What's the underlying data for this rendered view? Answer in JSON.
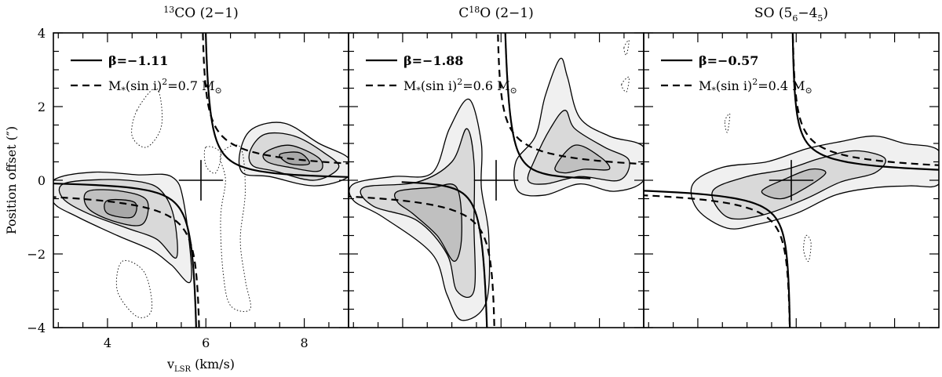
{
  "chart_data": {
    "type": "line",
    "xlabel": "v",
    "xlabel_sub": "LSR",
    "xlabel_unit": "(km/s)",
    "ylabel": "Position offset (″)",
    "xlim": [
      2.9,
      8.9
    ],
    "ylim": [
      -4,
      4
    ],
    "x_ticks": [
      "4",
      "6",
      "8"
    ],
    "y_ticks": [
      "−4",
      "−2",
      "0",
      "2",
      "4"
    ],
    "v_sys": 5.9,
    "panels": [
      {
        "title_sup": "13",
        "title_main": "CO (2−1)",
        "title_sup_first": true,
        "legend_solid": "β=−1.11",
        "legend_dashed_pre": "M",
        "legend_dashed_sub": "*",
        "legend_dashed_mid": "(sin i)",
        "legend_dashed_sup": "2",
        "legend_dashed_post": "=0.7 M",
        "legend_dashed_sun": "⊙",
        "beta": -1.11,
        "solid_A": 0.34,
        "dashed_A": 0.62,
        "contours": [
          {
            "level": 1,
            "points": [
              [
                2.9,
                0.0
              ],
              [
                3.7,
                0.22
              ],
              [
                4.6,
                0.15
              ],
              [
                5.3,
                0.1
              ],
              [
                5.55,
                -0.6
              ],
              [
                5.7,
                -2.7
              ],
              [
                5.3,
                -2.3
              ],
              [
                4.9,
                -1.9
              ],
              [
                4.2,
                -1.5
              ],
              [
                3.4,
                -1.0
              ],
              [
                2.9,
                -0.6
              ]
            ]
          },
          {
            "level": 2,
            "points": [
              [
                3.1,
                -0.1
              ],
              [
                3.9,
                0.02
              ],
              [
                4.7,
                -0.05
              ],
              [
                5.1,
                -0.3
              ],
              [
                5.35,
                -1.0
              ],
              [
                5.4,
                -2.1
              ],
              [
                5.0,
                -1.6
              ],
              [
                4.4,
                -1.3
              ],
              [
                3.6,
                -0.9
              ],
              [
                3.1,
                -0.5
              ]
            ]
          },
          {
            "level": 3,
            "points": [
              [
                3.6,
                -0.3
              ],
              [
                4.3,
                -0.3
              ],
              [
                4.8,
                -0.55
              ],
              [
                4.7,
                -1.2
              ],
              [
                4.1,
                -1.1
              ],
              [
                3.6,
                -0.75
              ]
            ]
          },
          {
            "level": 4,
            "points": [
              [
                4.0,
                -0.55
              ],
              [
                4.55,
                -0.6
              ],
              [
                4.5,
                -1.0
              ],
              [
                4.0,
                -0.9
              ]
            ]
          },
          {
            "level": 1,
            "points": [
              [
                6.7,
                0.8
              ],
              [
                6.95,
                1.4
              ],
              [
                7.6,
                1.55
              ],
              [
                8.3,
                1.0
              ],
              [
                8.9,
                0.6
              ],
              [
                8.9,
                0.1
              ],
              [
                8.2,
                -0.15
              ],
              [
                7.3,
                0.1
              ],
              [
                6.75,
                0.2
              ]
            ]
          },
          {
            "level": 2,
            "points": [
              [
                6.9,
                0.8
              ],
              [
                7.2,
                1.25
              ],
              [
                7.8,
                1.2
              ],
              [
                8.4,
                0.75
              ],
              [
                8.7,
                0.35
              ],
              [
                8.2,
                0.0
              ],
              [
                7.4,
                0.25
              ],
              [
                6.95,
                0.4
              ]
            ]
          },
          {
            "level": 3,
            "points": [
              [
                7.2,
                0.75
              ],
              [
                7.7,
                0.95
              ],
              [
                8.3,
                0.6
              ],
              [
                8.3,
                0.25
              ],
              [
                7.7,
                0.35
              ],
              [
                7.25,
                0.5
              ]
            ]
          },
          {
            "level": 4,
            "points": [
              [
                7.5,
                0.7
              ],
              [
                7.9,
                0.75
              ],
              [
                8.1,
                0.45
              ],
              [
                7.7,
                0.45
              ]
            ]
          }
        ],
        "dotted": [
          [
            [
              4.6,
              1.9
            ],
            [
              5.0,
              2.5
            ],
            [
              5.1,
              1.5
            ],
            [
              4.8,
              0.9
            ],
            [
              4.5,
              1.2
            ]
          ],
          [
            [
              6.3,
              0.7
            ],
            [
              6.7,
              0.9
            ],
            [
              6.8,
              -0.3
            ],
            [
              6.7,
              -1.6
            ],
            [
              6.8,
              -2.7
            ],
            [
              6.9,
              -3.5
            ],
            [
              6.5,
              -3.4
            ],
            [
              6.35,
              -2.5
            ],
            [
              6.3,
              -1.0
            ],
            [
              6.4,
              0.0
            ]
          ],
          [
            [
              4.3,
              -2.2
            ],
            [
              4.75,
              -2.5
            ],
            [
              4.9,
              -3.5
            ],
            [
              4.6,
              -3.7
            ],
            [
              4.2,
              -3.0
            ]
          ],
          [
            [
              6.0,
              0.9
            ],
            [
              6.3,
              0.75
            ],
            [
              6.2,
              0.2
            ],
            [
              6.0,
              0.4
            ]
          ]
        ]
      },
      {
        "title_sup": "18",
        "title_main": "C",
        "title_tail": "O (2−1)",
        "title_sup_first": false,
        "legend_solid": "β=−1.88",
        "legend_dashed_pre": "M",
        "legend_dashed_sub": "*",
        "legend_dashed_mid": "(sin i)",
        "legend_dashed_sup": "2",
        "legend_dashed_post": "=0.6 M",
        "legend_dashed_sun": "⊙",
        "beta": -1.88,
        "solid_A": 0.39,
        "dashed_A": 0.58,
        "contours": [
          {
            "level": 1,
            "points": [
              [
                3.0,
                -0.1
              ],
              [
                3.8,
                0.1
              ],
              [
                4.6,
                0.2
              ],
              [
                4.95,
                1.4
              ],
              [
                5.35,
                2.2
              ],
              [
                5.6,
                1.0
              ],
              [
                5.6,
                -0.2
              ],
              [
                5.75,
                -1.5
              ],
              [
                5.7,
                -3.3
              ],
              [
                5.2,
                -3.8
              ],
              [
                4.9,
                -3.1
              ],
              [
                4.6,
                -2.0
              ],
              [
                3.6,
                -1.0
              ],
              [
                3.0,
                -0.55
              ]
            ]
          },
          {
            "level": 2,
            "points": [
              [
                3.2,
                -0.2
              ],
              [
                4.3,
                -0.05
              ],
              [
                5.0,
                0.5
              ],
              [
                5.3,
                1.4
              ],
              [
                5.45,
                0.5
              ],
              [
                5.45,
                -1.2
              ],
              [
                5.45,
                -3.0
              ],
              [
                5.1,
                -3.0
              ],
              [
                4.9,
                -2.0
              ],
              [
                4.3,
                -1.1
              ],
              [
                3.4,
                -0.7
              ]
            ]
          },
          {
            "level": 3,
            "points": [
              [
                3.9,
                -0.3
              ],
              [
                4.6,
                -0.2
              ],
              [
                5.1,
                -0.2
              ],
              [
                5.2,
                -1.5
              ],
              [
                5.05,
                -2.2
              ],
              [
                4.7,
                -1.5
              ],
              [
                4.2,
                -0.9
              ],
              [
                3.9,
                -0.6
              ]
            ]
          },
          {
            "level": 1,
            "points": [
              [
                6.35,
                -0.3
              ],
              [
                6.3,
                0.5
              ],
              [
                6.7,
                1.2
              ],
              [
                6.9,
                2.3
              ],
              [
                7.2,
                3.3
              ],
              [
                7.35,
                2.8
              ],
              [
                7.6,
                1.7
              ],
              [
                8.2,
                1.2
              ],
              [
                8.9,
                0.9
              ],
              [
                8.9,
                0.0
              ],
              [
                8.3,
                -0.3
              ],
              [
                7.6,
                -0.1
              ],
              [
                6.9,
                -0.4
              ]
            ]
          },
          {
            "level": 2,
            "points": [
              [
                6.55,
                0.0
              ],
              [
                6.7,
                0.6
              ],
              [
                7.0,
                1.4
              ],
              [
                7.3,
                1.9
              ],
              [
                7.5,
                1.4
              ],
              [
                8.1,
                0.9
              ],
              [
                8.6,
                0.55
              ],
              [
                8.4,
                0.0
              ],
              [
                7.6,
                0.1
              ],
              [
                6.9,
                -0.1
              ]
            ]
          },
          {
            "level": 3,
            "points": [
              [
                7.1,
                0.35
              ],
              [
                7.5,
                0.95
              ],
              [
                8.0,
                0.65
              ],
              [
                8.2,
                0.3
              ],
              [
                7.7,
                0.3
              ],
              [
                7.3,
                0.2
              ]
            ]
          }
        ],
        "dotted": [
          [
            [
              8.45,
              2.6
            ],
            [
              8.6,
              2.8
            ],
            [
              8.55,
              2.4
            ]
          ],
          [
            [
              8.5,
              3.6
            ],
            [
              8.6,
              3.8
            ],
            [
              8.55,
              3.4
            ]
          ]
        ]
      },
      {
        "title_main": "SO (5",
        "title_sub1": "6",
        "title_mid": "−4",
        "title_sub2": "5",
        "title_tail": ")",
        "title_sup_first": false,
        "legend_solid": "β=−0.57",
        "legend_dashed_pre": "M",
        "legend_dashed_sub": "*",
        "legend_dashed_mid": "(sin i)",
        "legend_dashed_sup": "2",
        "legend_dashed_post": "=0.4 M",
        "legend_dashed_sun": "⊙",
        "beta": -0.57,
        "solid_A": 0.33,
        "dashed_A": 0.5,
        "contours": [
          {
            "level": 1,
            "points": [
              [
                3.9,
                -0.1
              ],
              [
                4.5,
                0.35
              ],
              [
                5.4,
                0.5
              ],
              [
                6.2,
                0.85
              ],
              [
                6.9,
                1.05
              ],
              [
                7.6,
                1.2
              ],
              [
                8.2,
                1.0
              ],
              [
                8.9,
                0.8
              ],
              [
                8.9,
                -0.1
              ],
              [
                8.3,
                -0.15
              ],
              [
                7.6,
                -0.2
              ],
              [
                6.8,
                -0.4
              ],
              [
                6.0,
                -0.9
              ],
              [
                5.2,
                -1.2
              ],
              [
                4.6,
                -1.3
              ],
              [
                4.0,
                -0.8
              ]
            ]
          },
          {
            "level": 2,
            "points": [
              [
                4.3,
                -0.3
              ],
              [
                5.0,
                0.1
              ],
              [
                5.8,
                0.3
              ],
              [
                6.5,
                0.6
              ],
              [
                7.2,
                0.8
              ],
              [
                7.8,
                0.6
              ],
              [
                7.6,
                0.2
              ],
              [
                6.9,
                -0.05
              ],
              [
                6.2,
                -0.5
              ],
              [
                5.3,
                -0.95
              ],
              [
                4.6,
                -1.0
              ]
            ]
          },
          {
            "level": 3,
            "points": [
              [
                5.3,
                -0.3
              ],
              [
                5.8,
                0.05
              ],
              [
                6.3,
                0.3
              ],
              [
                6.6,
                0.2
              ],
              [
                6.2,
                -0.2
              ],
              [
                5.7,
                -0.5
              ]
            ]
          }
        ],
        "dotted": [
          [
            [
              4.55,
              1.6
            ],
            [
              4.65,
              1.8
            ],
            [
              4.6,
              1.3
            ]
          ],
          [
            [
              6.2,
              -1.5
            ],
            [
              6.3,
              -1.7
            ],
            [
              6.25,
              -2.2
            ],
            [
              6.15,
              -1.9
            ]
          ]
        ]
      }
    ]
  }
}
